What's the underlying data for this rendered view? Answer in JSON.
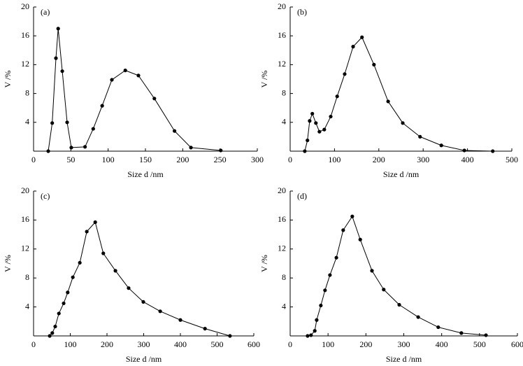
{
  "chart_data": [
    {
      "type": "line",
      "annotation": "(a)",
      "xlabel": "Size d /nm",
      "ylabel": "V /%",
      "color": "#000000",
      "markers": true,
      "xlim": [
        0,
        300
      ],
      "xticks": [
        0,
        50,
        100,
        150,
        200,
        250,
        300
      ],
      "ylim": [
        0,
        20
      ],
      "yticks": [
        4,
        8,
        12,
        16,
        20
      ],
      "x": [
        19.7,
        25,
        30,
        33,
        38.5,
        45,
        50.6,
        69,
        80,
        92,
        105,
        123,
        140.6,
        162,
        189,
        211,
        251
      ],
      "values": [
        0,
        3.9,
        12.9,
        17,
        11.1,
        4,
        0.5,
        0.6,
        3.1,
        6.3,
        9.9,
        11.2,
        10.5,
        7.3,
        2.8,
        0.5,
        0.1
      ]
    },
    {
      "type": "line",
      "annotation": "(b)",
      "xlabel": "Size d /nm",
      "ylabel": "V /%",
      "color": "#000000",
      "markers": true,
      "xlim": [
        0,
        500
      ],
      "xticks": [
        0,
        100,
        200,
        300,
        400,
        500
      ],
      "ylim": [
        0,
        20
      ],
      "yticks": [
        4,
        8,
        12,
        16,
        20
      ],
      "x": [
        33,
        39,
        44,
        50,
        58,
        66,
        77,
        91.5,
        106,
        123,
        142,
        162,
        189,
        221,
        254,
        293,
        341,
        393,
        457
      ],
      "values": [
        0,
        1.5,
        4.2,
        5.2,
        3.9,
        2.7,
        3.0,
        4.8,
        7.6,
        10.7,
        14.5,
        15.8,
        12,
        6.9,
        3.9,
        2.0,
        0.8,
        0.1,
        0
      ]
    },
    {
      "type": "line",
      "annotation": "(c)",
      "xlabel": "Size d /nm",
      "ylabel": "V /%",
      "color": "#000000",
      "markers": true,
      "xlim": [
        0,
        600
      ],
      "xticks": [
        0,
        100,
        200,
        300,
        400,
        500,
        600
      ],
      "ylim": [
        0,
        20
      ],
      "yticks": [
        4,
        8,
        12,
        16,
        20
      ],
      "x": [
        44,
        51,
        59,
        69,
        82,
        93,
        107,
        126,
        145,
        168,
        190,
        223,
        259,
        299,
        345,
        400,
        467,
        535
      ],
      "values": [
        0,
        0.4,
        1.3,
        3.1,
        4.5,
        6.0,
        8.1,
        10.1,
        14.4,
        15.7,
        11.4,
        9.0,
        6.6,
        4.7,
        3.4,
        2.2,
        1.0,
        0
      ]
    },
    {
      "type": "line",
      "annotation": "(d)",
      "xlabel": "Size d /nm",
      "ylabel": "V /%",
      "color": "#000000",
      "markers": true,
      "xlim": [
        0,
        600
      ],
      "xticks": [
        0,
        100,
        200,
        300,
        400,
        500,
        600
      ],
      "ylim": [
        0,
        20
      ],
      "yticks": [
        4,
        8,
        12,
        16,
        20
      ],
      "x": [
        46,
        55,
        65,
        70,
        81,
        92,
        105,
        122,
        140,
        164,
        185,
        216,
        247,
        288,
        338,
        391,
        452,
        517
      ],
      "values": [
        0,
        0.1,
        0.7,
        2.2,
        4.2,
        6.3,
        8.4,
        10.8,
        14.6,
        16.5,
        13.3,
        9.0,
        6.4,
        4.3,
        2.6,
        1.2,
        0.4,
        0.1
      ]
    }
  ]
}
